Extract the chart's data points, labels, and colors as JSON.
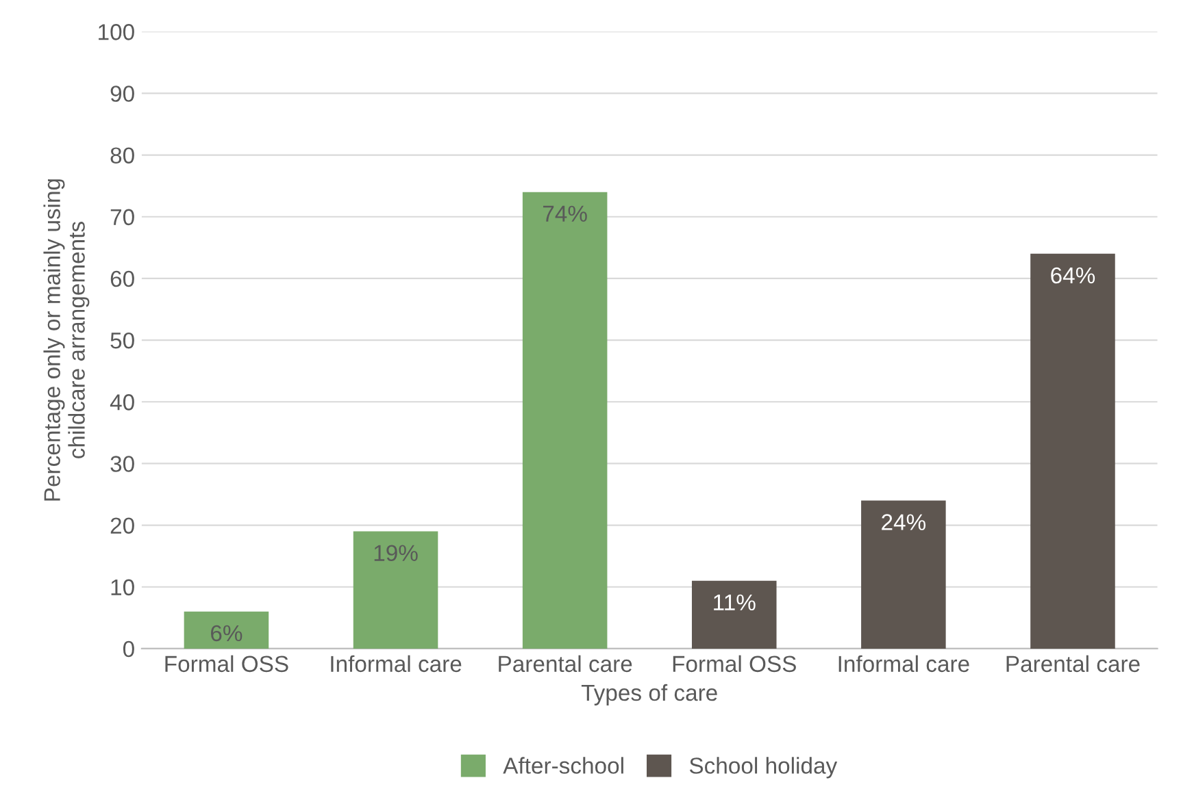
{
  "chart_data": {
    "type": "bar",
    "xlabel": "Types of care",
    "ylabel": "Percentage only or mainly using\nchildcare arrangements",
    "categories": [
      "Formal OSS",
      "Informal care",
      "Parental care",
      "Formal OSS",
      "Informal care",
      "Parental care"
    ],
    "series": [
      {
        "name": "After-school",
        "color": "#7aab6b",
        "values": [
          6,
          19,
          74,
          null,
          null,
          null
        ],
        "value_labels": [
          "6%",
          "19%",
          "74%",
          null,
          null,
          null
        ]
      },
      {
        "name": "School holiday",
        "color": "#5e5650",
        "values": [
          null,
          null,
          null,
          11,
          24,
          64
        ],
        "value_labels": [
          null,
          null,
          null,
          "11%",
          "24%",
          "64%"
        ]
      }
    ],
    "ylim": [
      0,
      100
    ],
    "yticks": [
      0,
      10,
      20,
      30,
      40,
      50,
      60,
      70,
      80,
      90,
      100
    ],
    "grid": "y",
    "legend": "bottom"
  }
}
